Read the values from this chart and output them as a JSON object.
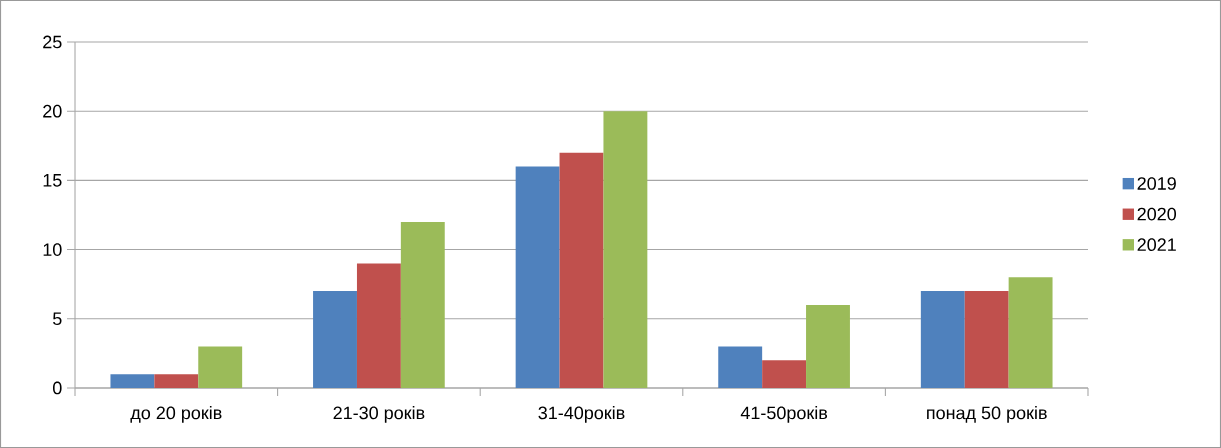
{
  "chart_data": {
    "type": "bar",
    "categories": [
      "до 20 років",
      "21-30 років",
      "31-40років",
      "41-50років",
      "понад 50 років"
    ],
    "series": [
      {
        "name": "2019",
        "color": "#4f81bd",
        "values": [
          1,
          7,
          16,
          3,
          7
        ]
      },
      {
        "name": "2020",
        "color": "#c0504d",
        "values": [
          1,
          9,
          17,
          2,
          7
        ]
      },
      {
        "name": "2021",
        "color": "#9bbb59",
        "values": [
          3,
          12,
          20,
          6,
          8
        ]
      }
    ],
    "ylim": [
      0,
      25
    ],
    "yticks": [
      0,
      5,
      10,
      15,
      20,
      25
    ],
    "grid": "y",
    "legend": "right"
  }
}
